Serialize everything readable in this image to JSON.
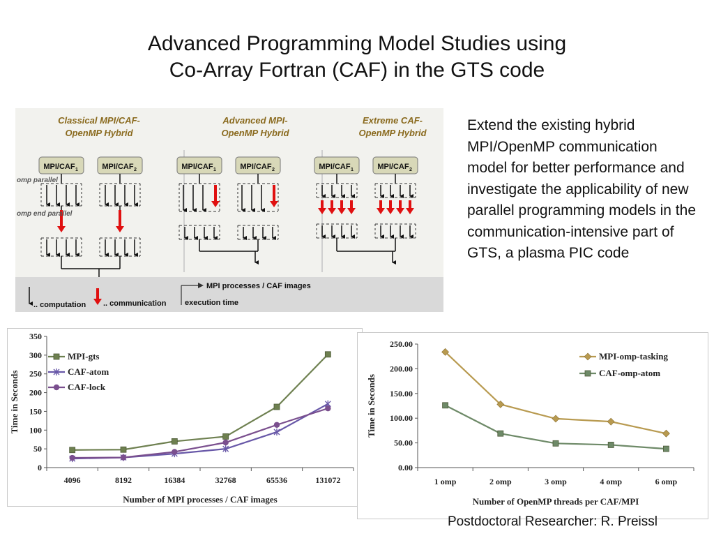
{
  "title": {
    "line1": "Advanced Programming Model Studies using",
    "line2": "Co-Array Fortran (CAF) in the GTS code"
  },
  "description": "Extend the existing hybrid MPI/OpenMP communication model for better performance and investigate the applicability of new parallel programming models in the communication-intensive part of GTS, a plasma PIC code",
  "footer": "Postdoctoral Researcher: R. Preissl",
  "diagram": {
    "columns": [
      {
        "title1": "Classical MPI/CAF-",
        "title2": "OpenMP Hybrid"
      },
      {
        "title1": "Advanced MPI-",
        "title2": "OpenMP Hybrid"
      },
      {
        "title1": "Extreme CAF-",
        "title2": "OpenMP Hybrid"
      }
    ],
    "box_label": "MPI/CAF",
    "sub1": "1",
    "sub2": "2",
    "omp_parallel": "omp parallel",
    "omp_end_parallel": "omp end parallel",
    "legend": {
      "computation": ".. computation",
      "communication": ".. communication",
      "mpi_processes": "MPI processes / CAF images",
      "execution_time": "execution time"
    },
    "colors": {
      "title": "#8a6a1e",
      "box": "#d8d8b8",
      "arrow_red": "#e01010",
      "panel": "#f2f2ee",
      "legend_bg": "#d9d9d9"
    }
  },
  "chart_data": [
    {
      "type": "line",
      "categories": [
        "4096",
        "8192",
        "16384",
        "32768",
        "65536",
        "131072"
      ],
      "series": [
        {
          "name": "MPI-gts",
          "values": [
            47,
            48,
            70,
            83,
            162,
            302
          ],
          "color": "#6e8050",
          "marker": "square"
        },
        {
          "name": "CAF-atom",
          "values": [
            24,
            27,
            37,
            50,
            95,
            170
          ],
          "color": "#6858a8",
          "marker": "star"
        },
        {
          "name": "CAF-lock",
          "values": [
            26,
            27,
            42,
            67,
            114,
            158
          ],
          "color": "#7a4f8e",
          "marker": "circle"
        }
      ],
      "yticks": [
        "350",
        "300",
        "250",
        "200",
        "150",
        "100",
        "50",
        "0"
      ],
      "ylim": [
        0,
        350
      ],
      "xlabel": "Number of MPI processes / CAF images",
      "ylabel": "Time in Seconds",
      "legend_position": "top-left"
    },
    {
      "type": "line",
      "categories": [
        "1 omp",
        "2 omp",
        "3 omp",
        "4 omp",
        "6 omp"
      ],
      "series": [
        {
          "name": "MPI-omp-tasking",
          "values": [
            234,
            128,
            99,
            93,
            69
          ],
          "color": "#b89a50",
          "marker": "diamond"
        },
        {
          "name": "CAF-omp-atom",
          "values": [
            126,
            69,
            49,
            46,
            38
          ],
          "color": "#6e8a68",
          "marker": "square"
        }
      ],
      "yticks": [
        "250.00",
        "200.00",
        "150.00",
        "100.00",
        "50.00",
        "0.00"
      ],
      "ylim": [
        0,
        250
      ],
      "xlabel": "Number of OpenMP threads per CAF/MPI",
      "ylabel": "Time in Seconds",
      "legend_position": "top-right"
    }
  ]
}
